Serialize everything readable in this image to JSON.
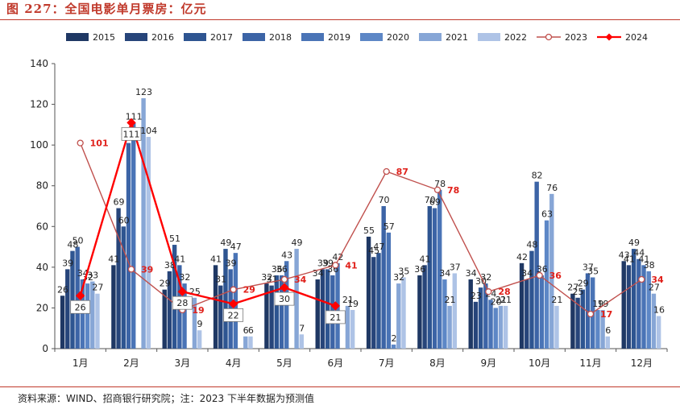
{
  "title": "图 227：全国电影单月票房：亿元",
  "source": "资料来源：WIND、招商银行研究院；注：2023 下半年数据为预测值",
  "chart_data": {
    "type": "bar",
    "categories": [
      "1月",
      "2月",
      "3月",
      "4月",
      "5月",
      "6月",
      "7月",
      "8月",
      "9月",
      "10月",
      "11月",
      "12月"
    ],
    "ylim": [
      0,
      140
    ],
    "yticks": [
      0,
      20,
      40,
      60,
      80,
      100,
      120,
      140
    ],
    "legend_position": "top",
    "grid": false,
    "series": [
      {
        "name": "2015",
        "type": "bar",
        "color": "#1f3864",
        "values": [
          26,
          41,
          29,
          41,
          32,
          34,
          55,
          36,
          34,
          42,
          27,
          43
        ]
      },
      {
        "name": "2016",
        "type": "bar",
        "color": "#27457a",
        "values": [
          39,
          69,
          38,
          31,
          31,
          39,
          45,
          41,
          23,
          34,
          25,
          41
        ]
      },
      {
        "name": "2017",
        "type": "bar",
        "color": "#2e5591",
        "values": [
          48,
          60,
          51,
          49,
          36,
          39,
          47,
          70,
          30,
          48,
          29,
          49
        ]
      },
      {
        "name": "2018",
        "type": "bar",
        "color": "#3c64a6",
        "values": [
          50,
          101,
          41,
          39,
          36,
          36,
          70,
          69,
          32,
          82,
          37,
          44
        ]
      },
      {
        "name": "2019",
        "type": "bar",
        "color": "#4a74b6",
        "values": [
          34,
          111,
          32,
          47,
          43,
          42,
          57,
          78,
          24,
          36,
          35,
          41
        ]
      },
      {
        "name": "2020",
        "type": "bar",
        "color": "#5d87c6",
        "values": [
          32,
          0,
          0,
          0,
          0,
          0,
          2,
          34,
          20,
          63,
          19,
          38
        ]
      },
      {
        "name": "2021",
        "type": "bar",
        "color": "#87a6d6",
        "values": [
          33,
          123,
          25,
          6,
          49,
          21,
          32,
          21,
          21,
          76,
          19,
          27
        ]
      },
      {
        "name": "2022",
        "type": "bar",
        "color": "#aec3e6",
        "values": [
          27,
          104,
          9,
          6,
          7,
          19,
          35,
          37,
          21,
          21,
          6,
          16
        ]
      },
      {
        "name": "2023",
        "type": "line",
        "color": "#c0504d",
        "values": [
          101,
          39,
          19,
          29,
          34,
          41,
          87,
          78,
          28,
          36,
          17,
          34
        ]
      },
      {
        "name": "2024",
        "type": "line",
        "color": "#ff0000",
        "values": [
          26,
          111,
          28,
          22,
          30,
          21,
          null,
          null,
          null,
          null,
          null,
          null
        ]
      }
    ]
  }
}
